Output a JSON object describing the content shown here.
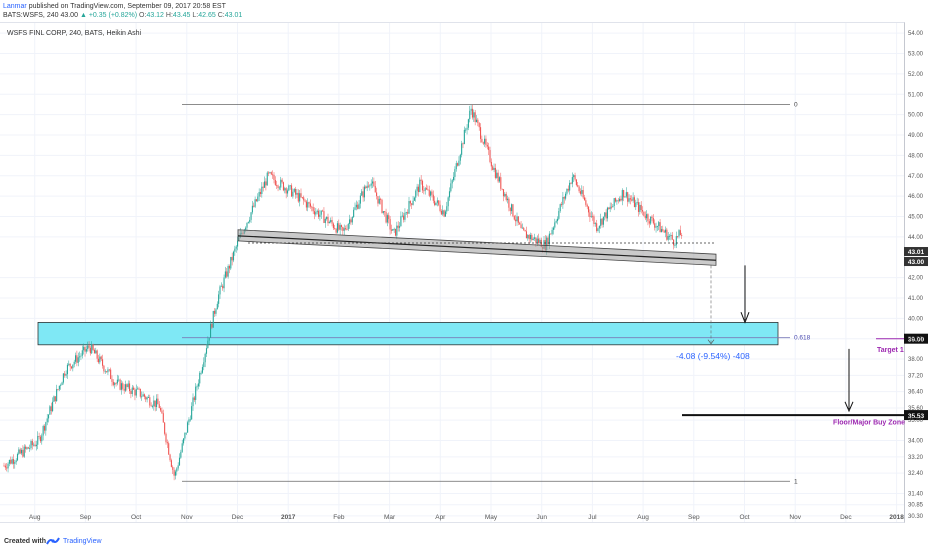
{
  "header": {
    "author": "Lanmar",
    "published_text": "published on TradingView.com, September 09, 2017 20:58 EST",
    "symbol": "BATS:WSFS, 240",
    "last": "43.00",
    "change": "+0.35 (+0.82%)",
    "o_label": "O:",
    "o_value": "43.12",
    "h_label": "H:",
    "h_value": "43.45",
    "l_label": "L:",
    "l_value": "42.65",
    "c_label": "C:",
    "c_value": "43.01"
  },
  "chart_data": {
    "type": "candlestick",
    "title": "WSFS FINL CORP, 240, BATS, Heikin Ashi",
    "x_ticks": [
      "Aug",
      "Sep",
      "Oct",
      "Nov",
      "Dec",
      "2017",
      "Feb",
      "Mar",
      "Apr",
      "May",
      "Jun",
      "Jul",
      "Aug",
      "Sep",
      "Oct",
      "Nov",
      "Dec",
      "2018"
    ],
    "y_ticks": [
      "54.00",
      "53.00",
      "52.00",
      "51.00",
      "50.00",
      "49.00",
      "48.00",
      "47.00",
      "46.00",
      "45.00",
      "44.00",
      "42.00",
      "41.00",
      "40.00",
      "39.00",
      "38.00",
      "37.20",
      "36.40",
      "35.60",
      "35.00",
      "34.00",
      "33.20",
      "32.40",
      "31.40",
      "30.85",
      "30.30"
    ],
    "ylim": [
      30.0,
      54.5
    ],
    "price_path": [
      {
        "x": "Jul 2016",
        "y": 32.2
      },
      {
        "x": "Aug 2016",
        "y": 34.0
      },
      {
        "x": "Aug 2016",
        "y": 37.5
      },
      {
        "x": "Sep 2016",
        "y": 38.6
      },
      {
        "x": "Sep 2016",
        "y": 36.8
      },
      {
        "x": "Oct 2016",
        "y": 36.3
      },
      {
        "x": "Oct 2016",
        "y": 35.7
      },
      {
        "x": "Oct 2016",
        "y": 32.2
      },
      {
        "x": "Nov 2016",
        "y": 35.4
      },
      {
        "x": "Nov 2016",
        "y": 41.0
      },
      {
        "x": "Dec 2016",
        "y": 44.2
      },
      {
        "x": "Dec 2016",
        "y": 47.0
      },
      {
        "x": "Jan 2017",
        "y": 46.2
      },
      {
        "x": "Feb 2017",
        "y": 44.2
      },
      {
        "x": "Feb 2017",
        "y": 46.8
      },
      {
        "x": "Mar 2017",
        "y": 44.1
      },
      {
        "x": "Mar 2017",
        "y": 46.6
      },
      {
        "x": "Apr 2017",
        "y": 45.2
      },
      {
        "x": "Apr 2017",
        "y": 50.3
      },
      {
        "x": "May 2017",
        "y": 47.2
      },
      {
        "x": "May 2017",
        "y": 44.2
      },
      {
        "x": "Jun 2017",
        "y": 43.6
      },
      {
        "x": "Jun 2017",
        "y": 47.0
      },
      {
        "x": "Jul 2017",
        "y": 44.5
      },
      {
        "x": "Jul 2017",
        "y": 46.2
      },
      {
        "x": "Aug 2017",
        "y": 45.0
      },
      {
        "x": "Aug 2017",
        "y": 43.8
      },
      {
        "x": "Sep 2017",
        "y": 45.0
      },
      {
        "x": "Sep 2017",
        "y": 43.0
      }
    ],
    "last_price_labels": [
      "43.01",
      "43.00"
    ],
    "fib_levels": [
      {
        "label": "0",
        "value": 50.5
      },
      {
        "label": "0.618",
        "value": 39.05
      },
      {
        "label": "1",
        "value": 32.0
      }
    ],
    "projection_text": "-4.08 (-9.54%) -408",
    "target1": {
      "label": "Target 1",
      "value": "39.00"
    },
    "floor": {
      "label": "Floor/Major Buy Zone",
      "value": "35.53"
    },
    "buy_zone_range": [
      38.7,
      39.8
    ]
  },
  "colors": {
    "up": "#26a69a",
    "down": "#ef5350",
    "zone_fill": "#7fe8f5",
    "accent_blue": "#2962ff",
    "purple": "#9c27b0"
  },
  "footer": {
    "created": "Created with",
    "brand": "TradingView"
  }
}
